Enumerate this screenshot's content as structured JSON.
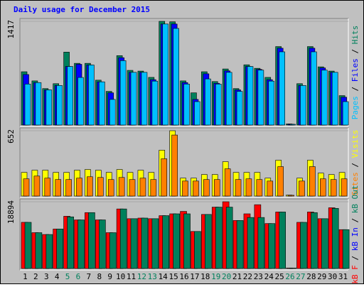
{
  "title": "Daily usage for December 2015",
  "separator": "/",
  "days": [
    {
      "text": "1",
      "weekend": false
    },
    {
      "text": "2",
      "weekend": false
    },
    {
      "text": "3",
      "weekend": false
    },
    {
      "text": "4",
      "weekend": false
    },
    {
      "text": "5",
      "weekend": true
    },
    {
      "text": "6",
      "weekend": true
    },
    {
      "text": "7",
      "weekend": false
    },
    {
      "text": "8",
      "weekend": false
    },
    {
      "text": "9",
      "weekend": false
    },
    {
      "text": "10",
      "weekend": false
    },
    {
      "text": "11",
      "weekend": false
    },
    {
      "text": "12",
      "weekend": true
    },
    {
      "text": "13",
      "weekend": true
    },
    {
      "text": "14",
      "weekend": false
    },
    {
      "text": "15",
      "weekend": false
    },
    {
      "text": "16",
      "weekend": false
    },
    {
      "text": "17",
      "weekend": false
    },
    {
      "text": "18",
      "weekend": false
    },
    {
      "text": "19",
      "weekend": true
    },
    {
      "text": "20",
      "weekend": true
    },
    {
      "text": "21",
      "weekend": false
    },
    {
      "text": "22",
      "weekend": false
    },
    {
      "text": "23",
      "weekend": false
    },
    {
      "text": "24",
      "weekend": false
    },
    {
      "text": "25",
      "weekend": false
    },
    {
      "text": "26",
      "weekend": true
    },
    {
      "text": "27",
      "weekend": true
    },
    {
      "text": "28",
      "weekend": false
    },
    {
      "text": "29",
      "weekend": false
    },
    {
      "text": "30",
      "weekend": false
    },
    {
      "text": "31",
      "weekend": false
    }
  ],
  "weekend_color": "#00805c",
  "panels": [
    {
      "type": "bar",
      "ymax": 1417,
      "legend": [
        {
          "text": "Pages",
          "color": "#00c0ff"
        },
        {
          "text": "Files",
          "color": "#0000ff"
        },
        {
          "text": "Hits",
          "color": "#00805c"
        }
      ],
      "series": [
        {
          "name": "Hits",
          "color": "#00805c",
          "values": [
            728,
            603,
            498,
            565,
            996,
            843,
            843,
            613,
            460,
            948,
            747,
            737,
            651,
            1417,
            1410,
            603,
            440,
            728,
            594,
            766,
            498,
            823,
            775,
            651,
            1072,
            15,
            565,
            1072,
            795,
            737,
            402
          ]
        },
        {
          "name": "Files",
          "color": "#0000ff",
          "values": [
            690,
            580,
            480,
            540,
            800,
            830,
            820,
            590,
            440,
            920,
            720,
            720,
            620,
            1380,
            1380,
            580,
            350,
            700,
            570,
            740,
            480,
            800,
            760,
            620,
            1050,
            12,
            540,
            1050,
            780,
            720,
            380
          ]
        },
        {
          "name": "Pages",
          "color": "#00c0ff",
          "values": [
            560,
            580,
            480,
            540,
            800,
            650,
            820,
            590,
            350,
            880,
            720,
            720,
            600,
            1380,
            1320,
            560,
            320,
            630,
            560,
            720,
            460,
            800,
            750,
            600,
            1000,
            10,
            540,
            1000,
            750,
            720,
            320
          ]
        }
      ]
    },
    {
      "type": "bar",
      "ymax": 652,
      "legend": [
        {
          "text": "Sites",
          "color": "#ff8000"
        },
        {
          "text": "Visits",
          "color": "#ffff00"
        }
      ],
      "series": [
        {
          "name": "Visits",
          "color": "#ffff00",
          "values": [
            236,
            258,
            258,
            236,
            236,
            258,
            265,
            258,
            236,
            265,
            236,
            258,
            236,
            458,
            652,
            179,
            179,
            215,
            215,
            343,
            236,
            236,
            236,
            179,
            358,
            10,
            179,
            358,
            229,
            215,
            236
          ]
        },
        {
          "name": "Sites",
          "color": "#ff8000",
          "values": [
            172,
            200,
            179,
            165,
            165,
            179,
            193,
            186,
            165,
            186,
            165,
            179,
            165,
            372,
            609,
            150,
            150,
            165,
            165,
            272,
            165,
            172,
            165,
            150,
            294,
            8,
            150,
            294,
            172,
            165,
            172
          ]
        }
      ]
    },
    {
      "type": "bar",
      "ymax": 18894,
      "legend": [
        {
          "text": "kB F",
          "color": "#ff0000"
        },
        {
          "text": "kB In",
          "color": "#0000ff"
        },
        {
          "text": "kB Out",
          "color": "#00805c"
        }
      ],
      "series": [
        {
          "name": "kB F",
          "color": "#ff0000",
          "values": [
            13072,
            10148,
            9632,
            11180,
            14792,
            13760,
            15824,
            13760,
            10148,
            16856,
            14104,
            14276,
            14104,
            14964,
            15480,
            16168,
            10492,
            15308,
            17372,
            18894,
            13588,
            15480,
            18060,
            12728,
            15996,
            150,
            13072,
            15996,
            14104,
            17200,
            11008
          ]
        },
        {
          "name": "kB Out",
          "color": "#00805c",
          "values": [
            13072,
            10148,
            9632,
            11180,
            14620,
            13760,
            15824,
            13760,
            10148,
            16856,
            14104,
            14276,
            14104,
            14964,
            15480,
            15480,
            10492,
            15308,
            17372,
            17372,
            13588,
            14448,
            14448,
            12728,
            15996,
            150,
            13072,
            15824,
            14104,
            17028,
            11008
          ]
        }
      ]
    }
  ]
}
